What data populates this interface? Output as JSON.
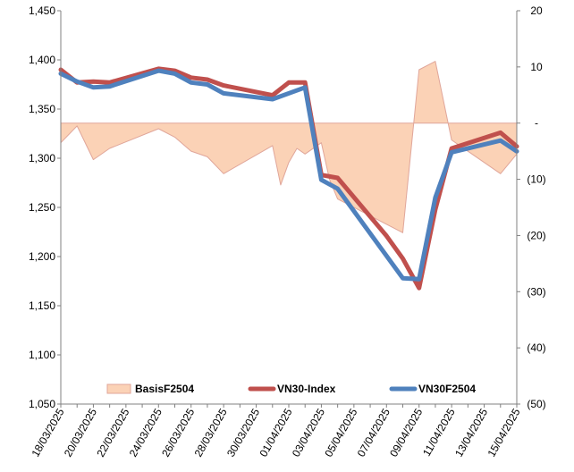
{
  "chart_data": {
    "type": "line",
    "title": "",
    "x": [
      "18/03/2025",
      "19/03/2025",
      "20/03/2025",
      "21/03/2025",
      "22/03/2025",
      "23/03/2025",
      "24/03/2025",
      "25/03/2025",
      "26/03/2025",
      "27/03/2025",
      "28/03/2025",
      "29/03/2025",
      "30/03/2025",
      "31/03/2025",
      "01/04/2025",
      "02/04/2025",
      "03/04/2025",
      "04/04/2025",
      "05/04/2025",
      "06/04/2025",
      "07/04/2025",
      "08/04/2025",
      "09/04/2025",
      "10/04/2025",
      "11/04/2025",
      "12/04/2025",
      "13/04/2025",
      "14/04/2025",
      "15/04/2025"
    ],
    "x_tick_labels": [
      "18/03/2025",
      "20/03/2025",
      "22/03/2025",
      "24/03/2025",
      "26/03/2025",
      "28/03/2025",
      "30/03/2025",
      "01/04/2025",
      "03/04/2025",
      "05/04/2025",
      "07/04/2025",
      "09/04/2025",
      "11/04/2025",
      "13/04/2025",
      "15/04/2025"
    ],
    "y_left": {
      "min": 1050,
      "max": 1450,
      "step": 50,
      "tick_labels": [
        "1,050",
        "1,100",
        "1,150",
        "1,200",
        "1,250",
        "1,300",
        "1,350",
        "1,400",
        "1,450"
      ]
    },
    "y_right": {
      "min": -50,
      "max": 20,
      "step": 10,
      "tick_labels": [
        "(50)",
        "(40)",
        "(30)",
        "(20)",
        "(10)",
        "-",
        "10",
        "20"
      ]
    },
    "series": [
      {
        "name": "BasisF2504",
        "type": "area",
        "axis": "right",
        "color": "#fbd2b6",
        "stroke": "#e0a69a",
        "points": [
          [
            0,
            -3.5
          ],
          [
            1,
            -0.5
          ],
          [
            2,
            -6.5
          ],
          [
            3,
            -4.5
          ],
          [
            6,
            -1
          ],
          [
            7,
            -2.5
          ],
          [
            8,
            -5
          ],
          [
            9,
            -6
          ],
          [
            10,
            -9
          ],
          [
            13,
            -4
          ],
          [
            13.5,
            -11
          ],
          [
            14,
            -7
          ],
          [
            14.5,
            -4.5
          ],
          [
            15,
            -5.5
          ],
          [
            16,
            -3.5
          ],
          [
            16.5,
            -10
          ],
          [
            17,
            -13.5
          ],
          [
            21,
            -19.5
          ],
          [
            22,
            9.5
          ],
          [
            23,
            11
          ],
          [
            24,
            -3
          ],
          [
            27,
            -9
          ],
          [
            28,
            -5.5
          ]
        ]
      },
      {
        "name": "VN30-Index",
        "type": "line",
        "axis": "left",
        "color": "#c0504d",
        "points": [
          [
            0,
            1390
          ],
          [
            1,
            1377
          ],
          [
            2,
            1378
          ],
          [
            3,
            1377
          ],
          [
            6,
            1391
          ],
          [
            7,
            1389
          ],
          [
            8,
            1382
          ],
          [
            9,
            1380
          ],
          [
            10,
            1374
          ],
          [
            13,
            1364
          ],
          [
            14,
            1377
          ],
          [
            15,
            1377
          ],
          [
            16,
            1283
          ],
          [
            17,
            1280
          ],
          [
            20,
            1221
          ],
          [
            21,
            1198
          ],
          [
            22,
            1168
          ],
          [
            23,
            1248
          ],
          [
            24,
            1310
          ],
          [
            27,
            1326
          ],
          [
            28,
            1312
          ]
        ]
      },
      {
        "name": "VN30F2504",
        "type": "line",
        "axis": "left",
        "color": "#4f81bd",
        "points": [
          [
            0,
            1386
          ],
          [
            1,
            1378
          ],
          [
            2,
            1372
          ],
          [
            3,
            1373
          ],
          [
            6,
            1389
          ],
          [
            7,
            1386
          ],
          [
            8,
            1377
          ],
          [
            9,
            1375
          ],
          [
            10,
            1366
          ],
          [
            13,
            1360
          ],
          [
            15,
            1372
          ],
          [
            16,
            1278
          ],
          [
            17,
            1269
          ],
          [
            21,
            1178
          ],
          [
            22,
            1177
          ],
          [
            23,
            1260
          ],
          [
            24,
            1306
          ],
          [
            27,
            1318
          ],
          [
            28,
            1307
          ]
        ]
      }
    ],
    "legend": {
      "placement": "bottom-inside",
      "labels": [
        "BasisF2504",
        "VN30-Index",
        "VN30F2504"
      ]
    },
    "grid": false
  }
}
